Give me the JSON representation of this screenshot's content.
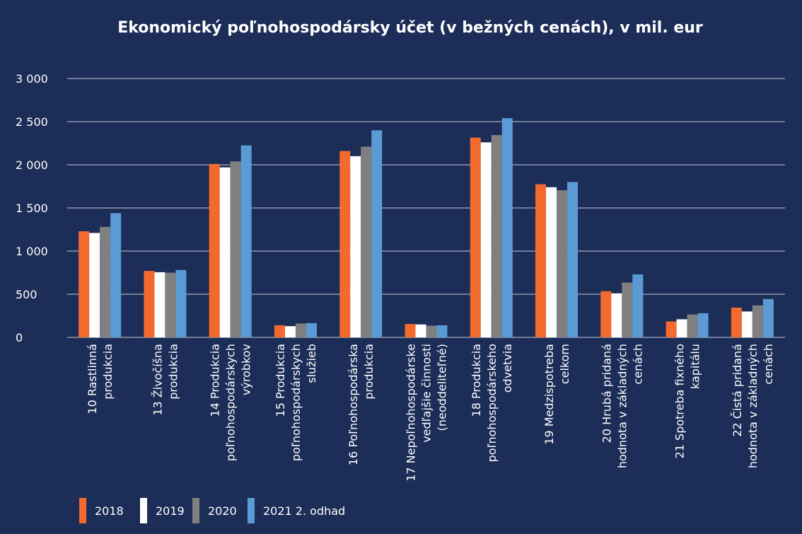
{
  "chart_data": {
    "type": "bar",
    "title": "Ekonomický poľnohospodársky účet (v bežných cenách), v mil. eur",
    "categories": [
      "10  Rastlinná\nprodukcia",
      "13  Živočíšna\nprodukcia",
      "14  Produkcia\npoľnohospodárskych\nvýrobkov",
      "15  Produkcia\npoľnohospodárskych\nslužieb",
      "16  Poľnohospodárska\nprodukcia",
      "17  Nepoľnohospodárske\nvedľajšie činnosti\n(neoddeliteľné)",
      "18  Produkcia\npoľnohospodárskeho\nodvetvia",
      "19  Medzispotreba\ncelkom",
      "20  Hrubá pridaná\nhodnota v základných\ncenách",
      "21  Spotreba fixného\nkapitálu",
      "22  Čistá pridaná\nhodnota v základných\ncenách"
    ],
    "series": [
      {
        "name": "2018",
        "color": "#f26a2e",
        "values": [
          1230,
          770,
          2010,
          140,
          2160,
          155,
          2315,
          1775,
          535,
          185,
          345
        ]
      },
      {
        "name": "2019",
        "color": "#ffffff",
        "values": [
          1210,
          755,
          1970,
          130,
          2100,
          150,
          2260,
          1740,
          510,
          210,
          300
        ]
      },
      {
        "name": "2020",
        "color": "#808080",
        "values": [
          1280,
          750,
          2040,
          160,
          2210,
          135,
          2345,
          1705,
          635,
          265,
          370
        ]
      },
      {
        "name": "2021 2. odhad",
        "color": "#5b9bd5",
        "values": [
          1440,
          780,
          2225,
          165,
          2400,
          140,
          2540,
          1800,
          730,
          280,
          445
        ]
      }
    ],
    "ylim": [
      0,
      3000
    ],
    "yticks": [
      0,
      500,
      {
        "value": 1000,
        "label": "1 000"
      },
      {
        "value": 1500,
        "label": "1 500"
      },
      {
        "value": 2000,
        "label": "2 000"
      },
      {
        "value": 2500,
        "label": "2 500"
      },
      {
        "value": 3000,
        "label": "3 000"
      }
    ],
    "grid": true,
    "legend": "bottom-left"
  }
}
